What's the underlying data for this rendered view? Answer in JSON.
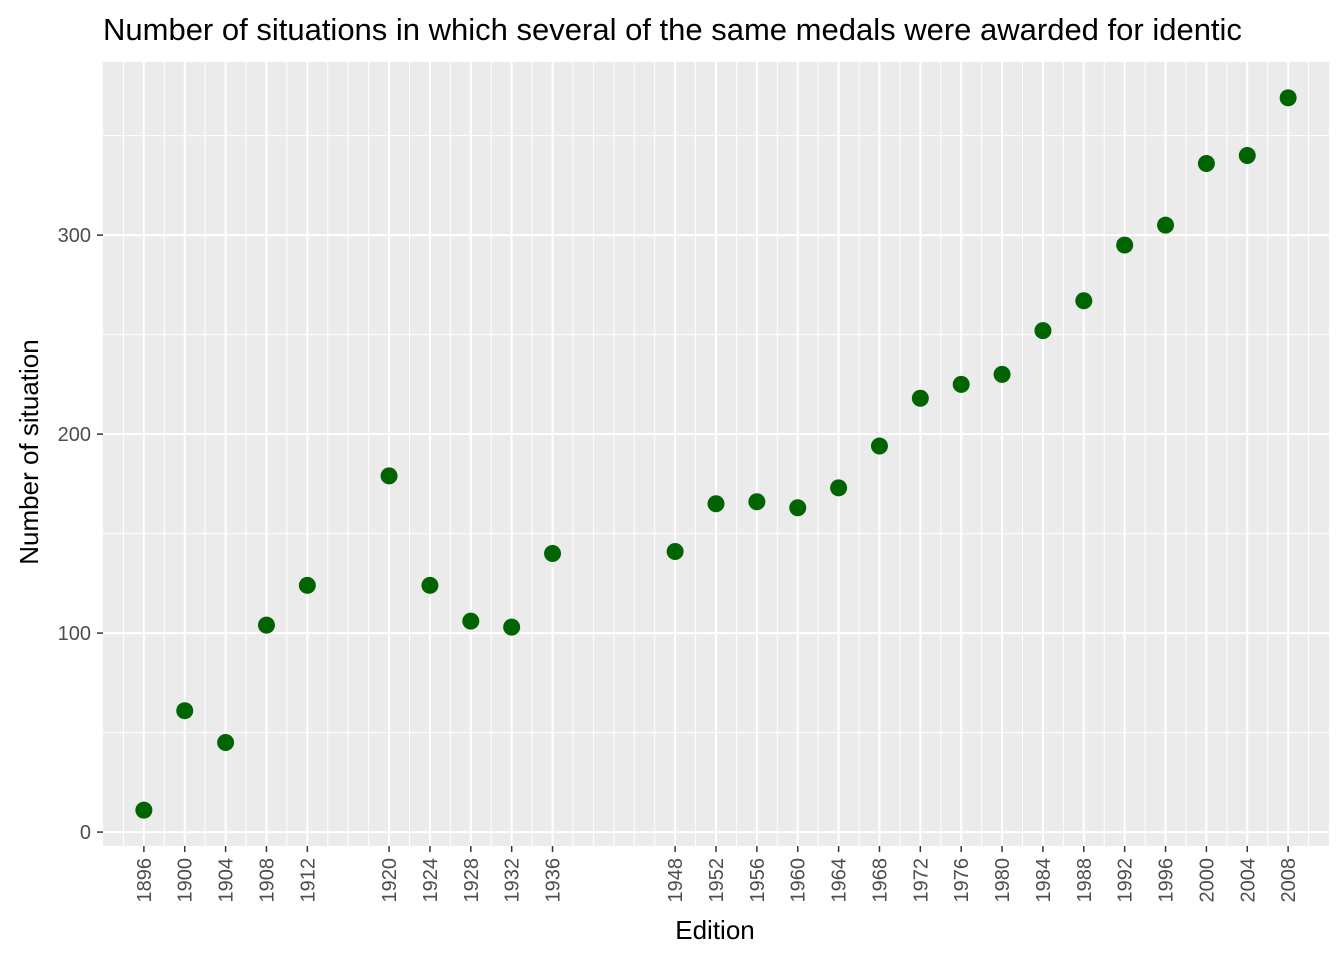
{
  "chart_data": {
    "type": "scatter",
    "title": "Number of situations in which several of the same medals were awarded for identic",
    "xlabel": "Edition",
    "ylabel": "Number of situation",
    "x": [
      1896,
      1900,
      1904,
      1908,
      1912,
      1920,
      1924,
      1928,
      1932,
      1936,
      1948,
      1952,
      1956,
      1960,
      1964,
      1968,
      1972,
      1976,
      1980,
      1984,
      1988,
      1992,
      1996,
      2000,
      2004,
      2008
    ],
    "y": [
      11,
      61,
      45,
      104,
      124,
      179,
      124,
      106,
      103,
      140,
      141,
      165,
      166,
      163,
      173,
      194,
      218,
      225,
      230,
      252,
      267,
      295,
      305,
      336,
      340,
      369
    ],
    "x_ticks": [
      "1896",
      "1900",
      "1904",
      "1908",
      "1912",
      "1920",
      "1924",
      "1928",
      "1932",
      "1936",
      "1948",
      "1952",
      "1956",
      "1960",
      "1964",
      "1968",
      "1972",
      "1976",
      "1980",
      "1984",
      "1988",
      "1992",
      "1996",
      "2000",
      "2004",
      "2008"
    ],
    "y_ticks": [
      "0",
      "100",
      "200",
      "300"
    ],
    "y_tick_values": [
      0,
      100,
      200,
      300
    ],
    "xlim": [
      1892,
      2012
    ],
    "ylim": [
      -7,
      387
    ],
    "grid": true,
    "legend": "none",
    "colors": {
      "point": "#006400",
      "panel": "#ebebeb",
      "grid": "#ffffff"
    }
  }
}
